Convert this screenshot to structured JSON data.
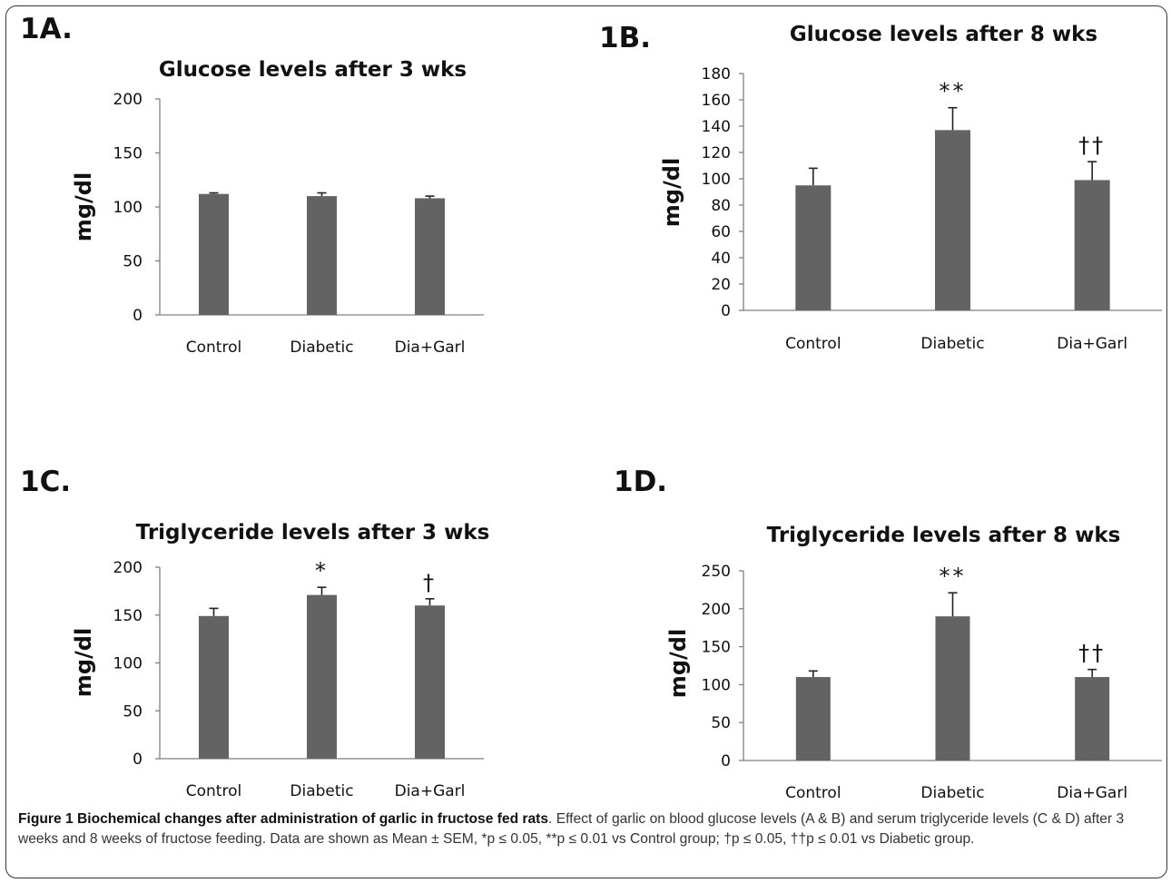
{
  "chart_data": [
    {
      "panel": "1A.",
      "type": "bar",
      "title": "Glucose levels after 3 wks",
      "ylabel": "mg/dl",
      "categories": [
        "Control",
        "Diabetic",
        "Dia+Garl"
      ],
      "values": [
        112,
        110,
        108
      ],
      "errors": [
        1,
        3,
        2
      ],
      "annotations": [
        "",
        "",
        ""
      ],
      "ylim": [
        0,
        200
      ],
      "yticks": [
        0,
        50,
        100,
        150,
        200
      ],
      "grid": false
    },
    {
      "panel": "1B.",
      "type": "bar",
      "title": "Glucose levels after 8 wks",
      "ylabel": "mg/dl",
      "categories": [
        "Control",
        "Diabetic",
        "Dia+Garl"
      ],
      "values": [
        95,
        137,
        99
      ],
      "errors": [
        13,
        17,
        14
      ],
      "annotations": [
        "",
        "**",
        "††"
      ],
      "ylim": [
        0,
        180
      ],
      "yticks": [
        0,
        20,
        40,
        60,
        80,
        100,
        120,
        140,
        160,
        180
      ],
      "grid": false
    },
    {
      "panel": "1C.",
      "type": "bar",
      "title": "Triglyceride levels after 3 wks",
      "ylabel": "mg/dl",
      "categories": [
        "Control",
        "Diabetic",
        "Dia+Garl"
      ],
      "values": [
        149,
        171,
        160
      ],
      "errors": [
        8,
        8,
        7
      ],
      "annotations": [
        "",
        "*",
        "†"
      ],
      "ylim": [
        0,
        200
      ],
      "yticks": [
        0,
        50,
        100,
        150,
        200
      ],
      "grid": false
    },
    {
      "panel": "1D.",
      "type": "bar",
      "title": "Triglyceride levels after 8 wks",
      "ylabel": "mg/dl",
      "categories": [
        "Control",
        "Diabetic",
        "Dia+Garl"
      ],
      "values": [
        110,
        190,
        110
      ],
      "errors": [
        8,
        31,
        10
      ],
      "annotations": [
        "",
        "**",
        "††"
      ],
      "ylim": [
        0,
        250
      ],
      "yticks": [
        0,
        50,
        100,
        150,
        200,
        250
      ],
      "grid": false
    }
  ],
  "colors": {
    "bar": "#636363",
    "axis": "#808080",
    "text": "#111111"
  },
  "caption": {
    "title": "Figure 1 Biochemical changes after administration of garlic in fructose fed rats",
    "text": ". Effect of garlic on blood glucose levels (A & B) and serum triglyceride levels (C & D) after 3 weeks and 8 weeks of fructose feeding. Data are shown as Mean ± SEM, *p ≤ 0.05, **p ≤ 0.01 vs Control group; †p ≤ 0.05, ††p ≤ 0.01 vs Diabetic group."
  }
}
